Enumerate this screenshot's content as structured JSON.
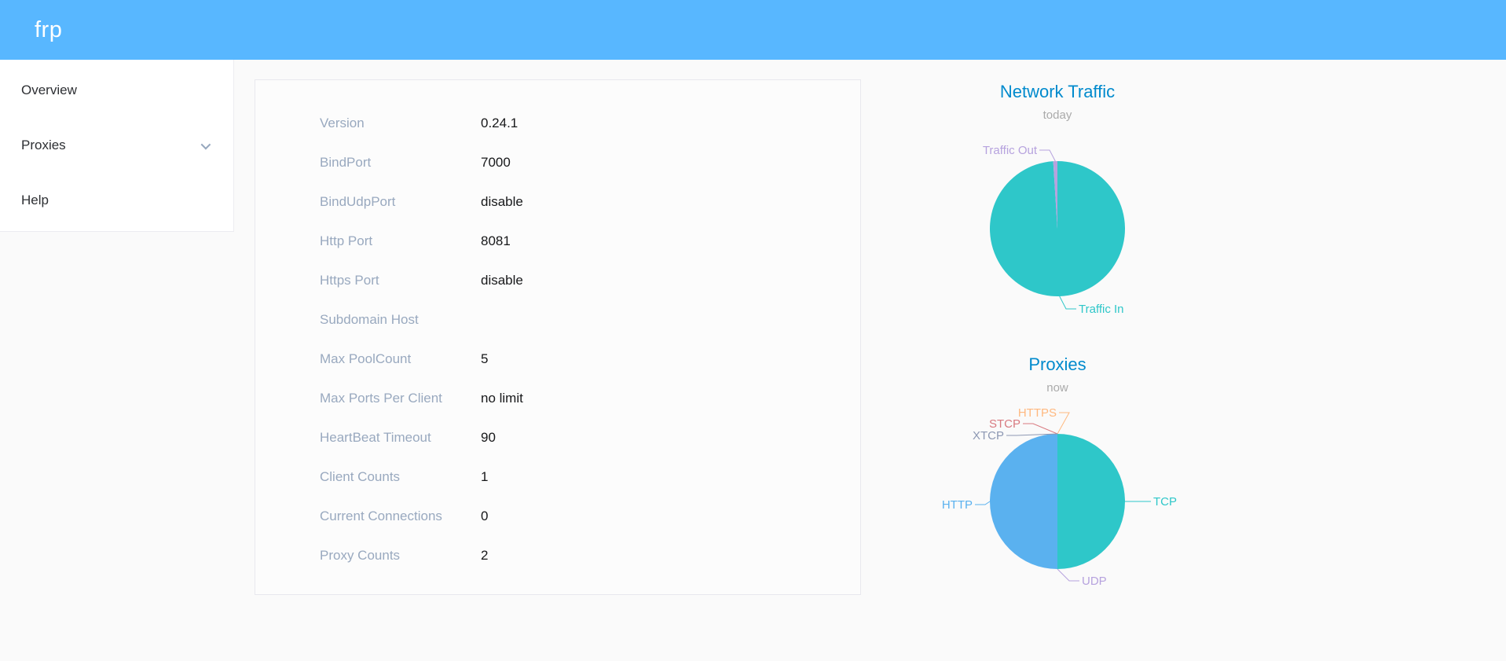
{
  "header": {
    "brand": "frp",
    "bg_color": "#58b7ff"
  },
  "sidebar": {
    "items": [
      {
        "label": "Overview",
        "has_submenu": false
      },
      {
        "label": "Proxies",
        "has_submenu": true
      },
      {
        "label": "Help",
        "has_submenu": false
      }
    ]
  },
  "overview": {
    "rows": [
      {
        "label": "Version",
        "value": "0.24.1"
      },
      {
        "label": "BindPort",
        "value": "7000"
      },
      {
        "label": "BindUdpPort",
        "value": "disable"
      },
      {
        "label": "Http Port",
        "value": "8081"
      },
      {
        "label": "Https Port",
        "value": "disable"
      },
      {
        "label": "Subdomain Host",
        "value": ""
      },
      {
        "label": "Max PoolCount",
        "value": "5"
      },
      {
        "label": "Max Ports Per Client",
        "value": "no limit"
      },
      {
        "label": "HeartBeat Timeout",
        "value": "90"
      },
      {
        "label": "Client Counts",
        "value": "1"
      },
      {
        "label": "Current Connections",
        "value": "0"
      },
      {
        "label": "Proxy Counts",
        "value": "2"
      }
    ]
  },
  "chart_data": [
    {
      "type": "pie",
      "title": "Network Traffic",
      "subtitle": "today",
      "title_color": "#008acd",
      "subtitle_color": "#aaaaaa",
      "legend_position": "none",
      "note": "no numeric labels visible; values are proportions estimated from slice angles",
      "slices": [
        {
          "name": "Traffic In",
          "value": 99,
          "color": "#2ec7c9",
          "label_side": "right",
          "label_pos": [
            277,
            232
          ]
        },
        {
          "name": "Traffic Out",
          "value": 1,
          "color": "#b6a2de",
          "label_side": "left",
          "label_pos": [
            224,
            30
          ]
        }
      ]
    },
    {
      "type": "pie",
      "title": "Proxies",
      "subtitle": "now",
      "title_color": "#008acd",
      "subtitle_color": "#aaaaaa",
      "legend_position": "none",
      "note": "TCP and HTTP each occupy half; UDP, HTTPS, STCP, XTCP are zero-size slices with labels only",
      "slices": [
        {
          "name": "TCP",
          "value": 1,
          "color": "#2ec7c9",
          "label_side": "right",
          "label_pos": [
            372,
            130
          ]
        },
        {
          "name": "UDP",
          "value": 0,
          "color": "#b6a2de",
          "label_side": "right",
          "label_pos": [
            281,
            231
          ]
        },
        {
          "name": "HTTP",
          "value": 1,
          "color": "#5ab1ef",
          "label_side": "left",
          "label_pos": [
            142,
            134
          ]
        },
        {
          "name": "HTTPS",
          "value": 0,
          "color": "#ffb980",
          "label_side": "left",
          "label_pos": [
            249,
            17
          ]
        },
        {
          "name": "STCP",
          "value": 0,
          "color": "#d87a80",
          "label_side": "left",
          "label_pos": [
            203,
            31
          ]
        },
        {
          "name": "XTCP",
          "value": 0,
          "color": "#8d98b3",
          "label_side": "left",
          "label_pos": [
            182,
            46
          ]
        }
      ]
    }
  ]
}
